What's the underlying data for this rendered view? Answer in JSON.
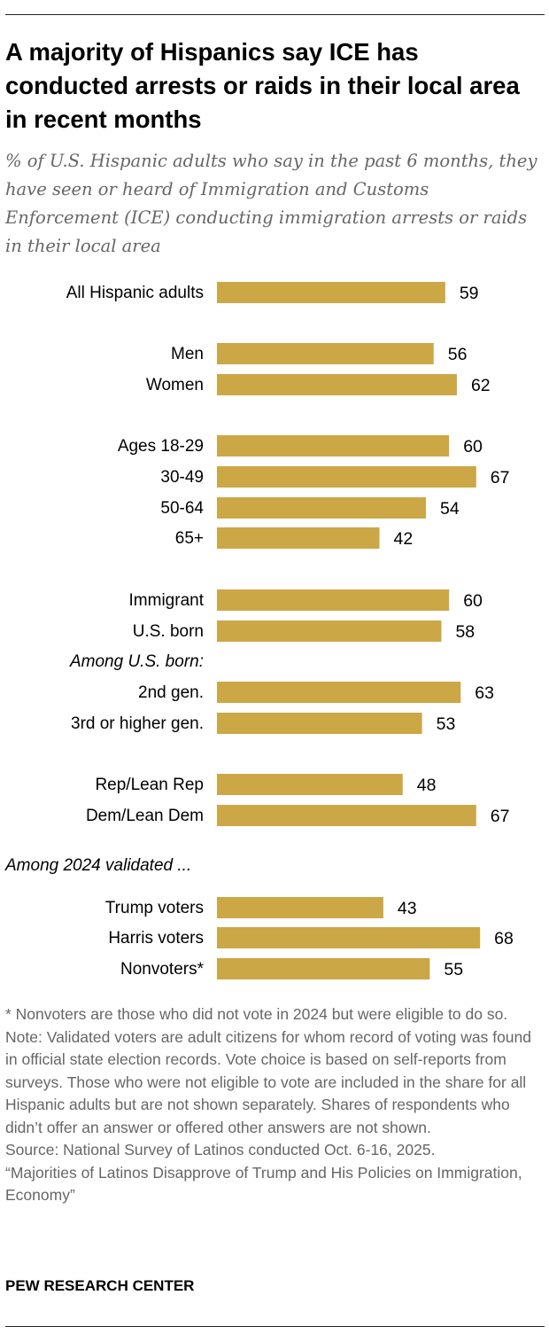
{
  "title": "A majority of Hispanics say ICE has conducted arrests or raids in their local area in recent months",
  "subtitle": "% of U.S. Hispanic adults who say in the past 6 months, they have seen or heard of Immigration and Customs Enforcement (ICE) conducting immigration arrests or raids in their local area",
  "chart_data": {
    "type": "bar",
    "orientation": "horizontal",
    "title": "A majority of Hispanics say ICE has conducted arrests or raids in their local area in recent months",
    "xlabel": "",
    "ylabel": "",
    "xlim": [
      0,
      100
    ],
    "grid": false,
    "bar_color": "#CCA746",
    "categories": [
      "All Hispanic adults",
      "Men",
      "Women",
      "Ages 18-29",
      "30-49",
      "50-64",
      "65+",
      "Immigrant",
      "U.S. born",
      "2nd gen.",
      "3rd or higher gen.",
      "Rep/Lean Rep",
      "Dem/Lean Dem",
      "Trump voters",
      "Harris voters",
      "Nonvoters*"
    ],
    "values": [
      59,
      56,
      62,
      60,
      67,
      54,
      42,
      60,
      58,
      63,
      53,
      48,
      67,
      43,
      68,
      55
    ],
    "section_labels": [
      "Among U.S. born:",
      "Among 2024 validated ..."
    ]
  },
  "footnotes": [
    "* Nonvoters are those who did not vote in 2024 but were eligible to do so.",
    "Note: Validated voters are adult citizens for whom record of voting was found in official state election records. Vote choice is based on self-reports from surveys. Those who were not eligible to vote are included in the share for all Hispanic adults but are not shown separately. Shares of respondents who didn’t offer an answer or offered other answers are not shown.",
    "Source: National Survey of Latinos conducted Oct. 6-16, 2025.",
    "“Majorities of Latinos Disapprove of Trump and His Policies on Immigration, Economy”"
  ],
  "brand": "PEW RESEARCH CENTER"
}
